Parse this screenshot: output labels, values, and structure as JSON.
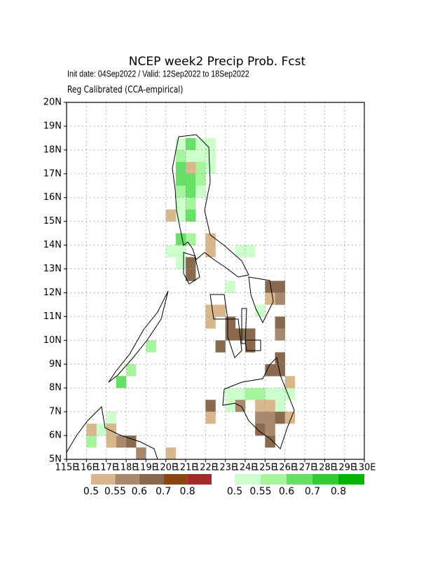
{
  "header": {
    "title": "NCEP week2 Precip Prob. Fcst",
    "line1": "Init date: 04Sep2022 / Valid: 12Sep2022 to 18Sep2022",
    "line2": "Reg Calibrated (CCA-empirical)"
  },
  "map": {
    "xlim": [
      115,
      130
    ],
    "ylim": [
      5,
      20
    ],
    "xticks": [
      {
        "value": 115,
        "label": "115E"
      },
      {
        "value": 116,
        "label": "116E"
      },
      {
        "value": 117,
        "label": "117E"
      },
      {
        "value": 118,
        "label": "118E"
      },
      {
        "value": 119,
        "label": "119E"
      },
      {
        "value": 120,
        "label": "120E"
      },
      {
        "value": 121,
        "label": "121E"
      },
      {
        "value": 122,
        "label": "122E"
      },
      {
        "value": 123,
        "label": "123E"
      },
      {
        "value": 124,
        "label": "124E"
      },
      {
        "value": 125,
        "label": "125E"
      },
      {
        "value": 126,
        "label": "126E"
      },
      {
        "value": 127,
        "label": "127E"
      },
      {
        "value": 128,
        "label": "128E"
      },
      {
        "value": 129,
        "label": "129E"
      },
      {
        "value": 130,
        "label": "130E"
      }
    ],
    "yticks": [
      {
        "value": 5,
        "label": "5N"
      },
      {
        "value": 6,
        "label": "6N"
      },
      {
        "value": 7,
        "label": "7N"
      },
      {
        "value": 8,
        "label": "8N"
      },
      {
        "value": 9,
        "label": "9N"
      },
      {
        "value": 10,
        "label": "10N"
      },
      {
        "value": 11,
        "label": "11N"
      },
      {
        "value": 12,
        "label": "12N"
      },
      {
        "value": 13,
        "label": "13N"
      },
      {
        "value": 14,
        "label": "14N"
      },
      {
        "value": 15,
        "label": "15N"
      },
      {
        "value": 16,
        "label": "16N"
      },
      {
        "value": 17,
        "label": "17N"
      },
      {
        "value": 18,
        "label": "18N"
      },
      {
        "value": 19,
        "label": "19N"
      },
      {
        "value": 20,
        "label": "20N"
      }
    ],
    "cell_size": 0.5,
    "cells": {
      "above": [
        [
          120.5,
          18,
          0
        ],
        [
          121,
          18,
          2
        ],
        [
          121.5,
          18,
          0
        ],
        [
          122,
          18,
          0
        ],
        [
          120.5,
          17.5,
          1
        ],
        [
          121,
          17.5,
          0
        ],
        [
          121.5,
          17.5,
          0
        ],
        [
          122,
          17.5,
          0
        ],
        [
          120.5,
          17,
          2
        ],
        [
          121.5,
          17,
          1
        ],
        [
          122,
          17,
          0
        ],
        [
          120.5,
          16.5,
          2
        ],
        [
          121,
          16.5,
          2
        ],
        [
          121.5,
          16.5,
          1
        ],
        [
          120.5,
          16,
          1
        ],
        [
          121,
          16,
          2
        ],
        [
          121.5,
          16,
          0
        ],
        [
          120.5,
          15.5,
          0
        ],
        [
          121,
          15.5,
          1
        ],
        [
          120.5,
          15,
          0
        ],
        [
          121,
          15,
          2
        ],
        [
          120.5,
          14,
          2
        ],
        [
          121,
          14,
          1
        ],
        [
          120,
          13.5,
          0
        ],
        [
          120.5,
          13.5,
          0
        ],
        [
          120.5,
          13,
          0
        ],
        [
          123.5,
          13.5,
          0
        ],
        [
          124,
          13.5,
          0
        ],
        [
          123,
          12,
          0
        ],
        [
          124.5,
          11,
          0
        ],
        [
          119,
          9.5,
          1
        ],
        [
          118,
          8.5,
          1
        ],
        [
          117.5,
          8,
          2
        ],
        [
          123,
          7.5,
          0
        ],
        [
          123.5,
          7.5,
          0
        ],
        [
          124,
          7.5,
          1
        ],
        [
          124.5,
          7.5,
          1
        ],
        [
          125,
          7.5,
          0
        ],
        [
          125.5,
          7.5,
          0
        ],
        [
          126,
          7.5,
          0
        ],
        [
          123,
          7,
          0
        ],
        [
          125.5,
          7,
          0
        ],
        [
          117,
          6.5,
          0
        ],
        [
          116,
          5.5,
          1
        ],
        [
          117,
          5.5,
          0
        ],
        [
          116.5,
          6,
          0
        ]
      ],
      "below": [
        [
          121,
          17,
          0
        ],
        [
          120,
          15,
          0
        ],
        [
          122,
          14,
          0
        ],
        [
          122,
          13.5,
          0
        ],
        [
          121,
          13,
          2
        ],
        [
          121,
          12.5,
          2
        ],
        [
          122,
          11,
          0
        ],
        [
          122,
          10.5,
          0
        ],
        [
          122.5,
          11,
          0
        ],
        [
          123,
          10.5,
          2
        ],
        [
          123,
          10,
          2
        ],
        [
          123.5,
          10,
          2
        ],
        [
          124,
          10,
          2
        ],
        [
          122.5,
          9.5,
          2
        ],
        [
          124,
          9.5,
          2
        ],
        [
          125,
          12,
          2
        ],
        [
          125.5,
          12,
          2
        ],
        [
          125.5,
          11.5,
          1
        ],
        [
          125,
          11.5,
          0
        ],
        [
          125.5,
          10.5,
          2
        ],
        [
          125.5,
          10,
          1
        ],
        [
          125.5,
          9,
          2
        ],
        [
          125,
          8.5,
          2
        ],
        [
          125.5,
          8.5,
          2
        ],
        [
          126,
          8,
          0
        ],
        [
          124.5,
          7,
          0
        ],
        [
          125,
          7,
          0
        ],
        [
          124.5,
          6.5,
          1
        ],
        [
          125,
          6.5,
          1
        ],
        [
          125.5,
          6.5,
          2
        ],
        [
          124.5,
          6,
          2
        ],
        [
          125,
          6,
          1
        ],
        [
          125,
          5.5,
          2
        ],
        [
          126,
          6.5,
          0
        ],
        [
          122,
          7,
          2
        ],
        [
          122,
          6.5,
          0
        ],
        [
          117,
          6,
          0
        ],
        [
          117,
          5.5,
          0
        ],
        [
          117.5,
          5.5,
          1
        ],
        [
          118,
          5.5,
          2
        ],
        [
          118.5,
          5,
          1
        ],
        [
          116,
          6,
          0
        ],
        [
          120,
          5,
          0
        ],
        [
          123.5,
          7,
          1
        ]
      ]
    }
  },
  "legend": {
    "below": {
      "colors": [
        "#d9b78c",
        "#a8896e",
        "#8a6a4e",
        "#8b4513",
        "#a52a2a"
      ],
      "labels": [
        0.5,
        0.55,
        0.6,
        0.7,
        0.8
      ]
    },
    "above": {
      "colors": [
        "#ccffcc",
        "#a6f59c",
        "#66e066",
        "#33cc33",
        "#00b400"
      ],
      "labels": [
        0.5,
        0.55,
        0.6,
        0.7,
        0.8
      ]
    }
  }
}
